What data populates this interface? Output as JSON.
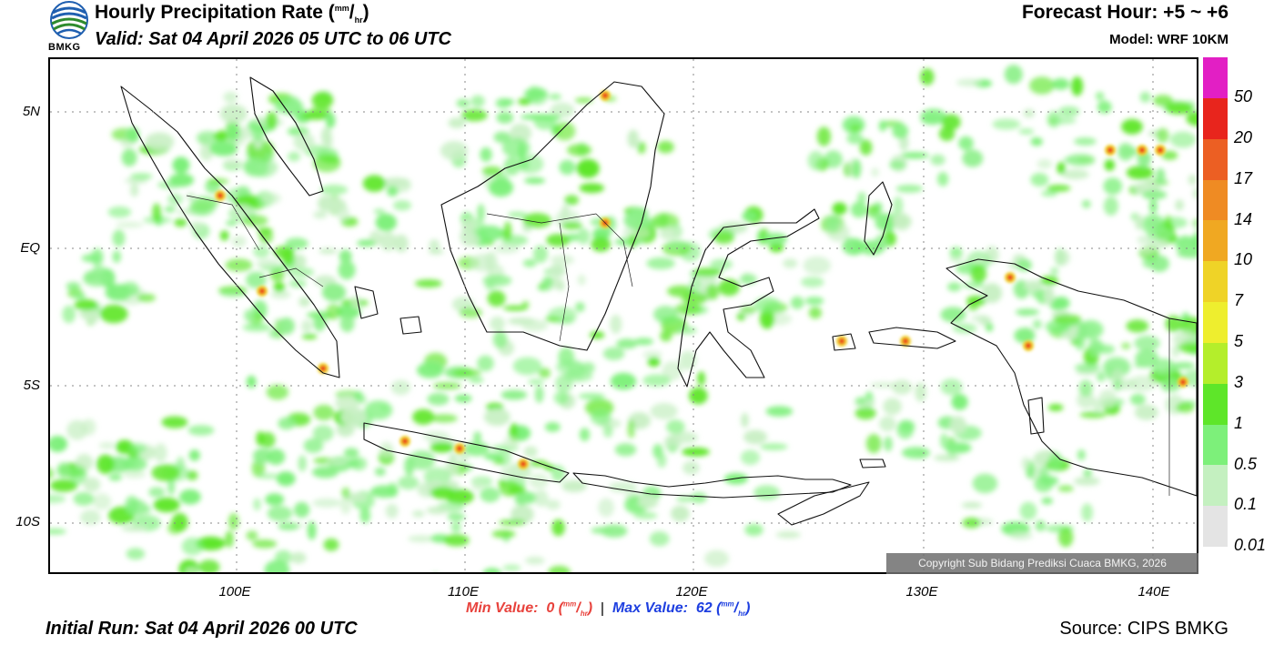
{
  "header": {
    "title_main": "Hourly Precipitation Rate (",
    "title_unit_num": "mm",
    "title_unit_den": "hr",
    "title_end": ")",
    "valid": "Valid: Sat 04 April 2026 05 UTC to 06 UTC",
    "forecast_hour": "Forecast Hour: +5 ~ +6",
    "model": "Model: WRF 10KM",
    "logo_text": "BMKG"
  },
  "map": {
    "lat_labels": [
      "5N",
      "EQ",
      "5S",
      "10S"
    ],
    "lon_labels": [
      "100E",
      "110E",
      "120E",
      "130E",
      "140E"
    ],
    "region": "Indonesia"
  },
  "colorbar": {
    "labels": [
      "50",
      "20",
      "17",
      "14",
      "10",
      "7",
      "5",
      "3",
      "1",
      "0.5",
      "0.1",
      "0.01"
    ],
    "colors": [
      "#e21fc4",
      "#e8251d",
      "#ec5f23",
      "#ef8b23",
      "#f0a822",
      "#efd327",
      "#eeee2e",
      "#b4ee2b",
      "#5ee629",
      "#7df07a",
      "#c4f0c0",
      "#e4e4e4"
    ]
  },
  "footer": {
    "copyright": "Copyright Sub Bidang Prediksi Cuaca BMKG, 2026",
    "min_label": "Min Value:",
    "min_value": "0",
    "max_label": "Max Value:",
    "max_value": "62",
    "unit_num": "mm",
    "unit_den": "hr",
    "initial_run": "Initial Run: Sat 04 April 2026 00 UTC",
    "source": "Source: CIPS BMKG"
  }
}
